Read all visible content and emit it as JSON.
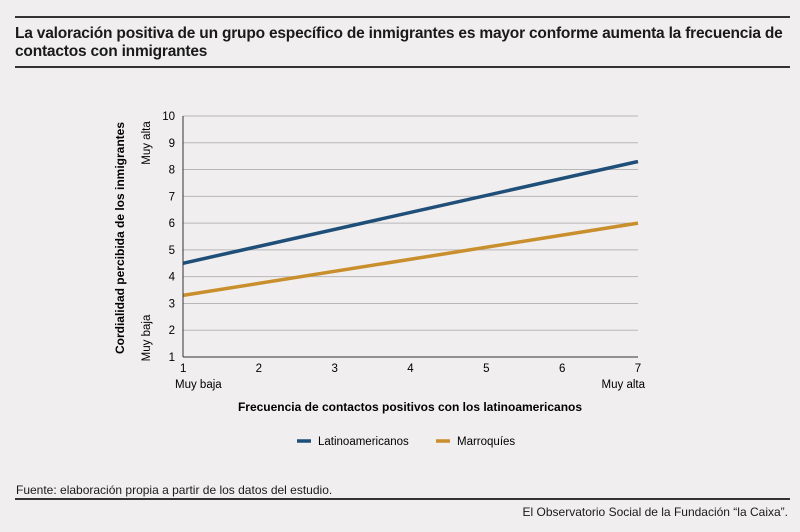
{
  "header": {
    "title": "La valoración positiva de un grupo específico de inmigrantes es mayor conforme aumenta la frecuencia de contactos con inmigrantes"
  },
  "footer": {
    "source": "Fuente: elaboración propia a partir de los datos del estudio.",
    "credit": "El Observatorio Social de la Fundación “la Caixa”."
  },
  "colors": {
    "latinoamericanos": "#1f4e79",
    "marroquies": "#c98f2c"
  },
  "chart_data": {
    "type": "line",
    "xlabel": "Frecuencia de contactos positivos con los latinoamericanos",
    "ylabel": "Cordialidad percibida de los inmigrantes",
    "x_min_label": "Muy baja",
    "x_max_label": "Muy alta",
    "y_min_label": "Muy baja",
    "y_max_label": "Muy alta",
    "xlim": [
      1,
      7
    ],
    "ylim": [
      1,
      10
    ],
    "x_ticks": [
      "1",
      "2",
      "3",
      "4",
      "5",
      "6",
      "7"
    ],
    "y_ticks": [
      "1",
      "2",
      "3",
      "4",
      "5",
      "6",
      "7",
      "8",
      "9",
      "10"
    ],
    "grid": true,
    "legend_position": "bottom",
    "series": [
      {
        "name": "Latinoamericanos",
        "x": [
          1,
          7
        ],
        "y": [
          4.5,
          8.3
        ]
      },
      {
        "name": "Marroquíes",
        "x": [
          1,
          7
        ],
        "y": [
          3.3,
          6.0
        ]
      }
    ]
  }
}
